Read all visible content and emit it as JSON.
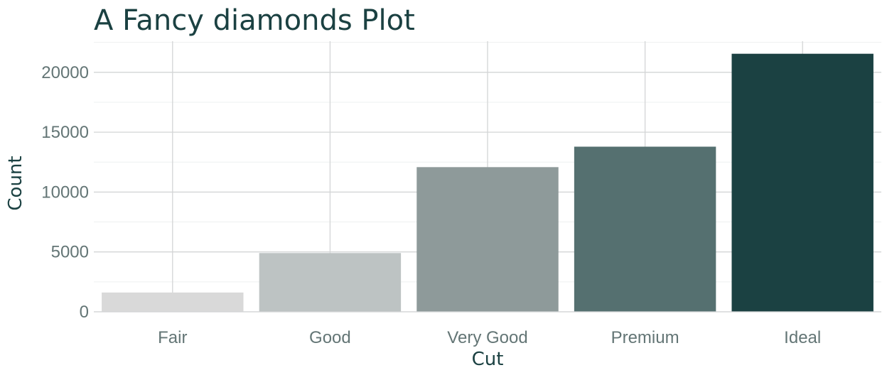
{
  "chart_data": {
    "type": "bar",
    "title": "A Fancy diamonds Plot",
    "xlabel": "Cut",
    "ylabel": "Count",
    "categories": [
      "Fair",
      "Good",
      "Very Good",
      "Premium",
      "Ideal"
    ],
    "values": [
      1610,
      4906,
      12082,
      13791,
      21551
    ],
    "colors": [
      "#d9d9d9",
      "#bdc3c3",
      "#8e9a9a",
      "#557070",
      "#1b4142"
    ],
    "ylim": [
      0,
      22600
    ],
    "yticks": [
      0,
      5000,
      10000,
      15000,
      20000
    ],
    "ytick_labels": [
      "0",
      "5000",
      "10000",
      "15000",
      "20000"
    ],
    "grid": true,
    "legend": "none"
  }
}
